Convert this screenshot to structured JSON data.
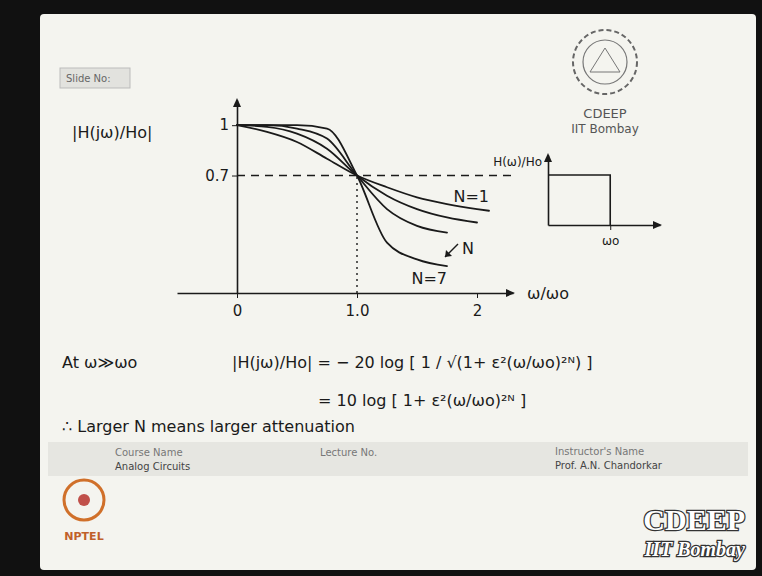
{
  "chart_data": [
    {
      "type": "line",
      "x_label": "ω/ωo",
      "y_label": "|H(jω)/Ho|",
      "x": [
        0,
        0.25,
        0.5,
        0.75,
        1.0,
        1.25,
        1.5,
        1.75,
        2.0,
        2.1
      ],
      "series": [
        {
          "name": "N=1",
          "values": [
            1.0,
            0.96,
            0.9,
            0.8,
            0.7,
            0.63,
            0.57,
            0.53,
            0.5,
            0.49
          ]
        },
        {
          "values": [
            1.0,
            0.99,
            0.95,
            0.86,
            0.7,
            0.58,
            0.5,
            0.45,
            0.42,
            null
          ]
        },
        {
          "values": [
            1.0,
            1.0,
            0.98,
            0.92,
            0.7,
            0.5,
            0.4,
            0.36,
            null,
            null
          ]
        },
        {
          "name": "N=7",
          "values": [
            1.0,
            1.0,
            1.0,
            0.98,
            0.7,
            0.3,
            0.2,
            0.16,
            null,
            null
          ]
        }
      ],
      "annotations": [
        {
          "text": "N"
        }
      ],
      "reference_lines": [
        {
          "axis": "y",
          "value": 0.7,
          "line_style": "dashed"
        },
        {
          "axis": "x",
          "value": 1.0,
          "line_style": "dotted"
        }
      ],
      "xlim": [
        -0.5,
        2.3
      ],
      "xticks": [
        0,
        {
          "value": 1,
          "label": "1.0"
        },
        2
      ],
      "ylim": [
        0,
        1.15
      ],
      "yticks": [
        0.7,
        1
      ],
      "grid": false,
      "color": "#1a1a1a"
    },
    {
      "type": "line",
      "y_label": "H(ω)/Ho",
      "x": [
        0,
        1,
        1
      ],
      "values": [
        1,
        1,
        0
      ],
      "xlim": [
        0,
        1.8
      ],
      "xticks": [
        {
          "value": 1,
          "label": "ωo"
        }
      ],
      "ylim": [
        0,
        1.4
      ],
      "yticks": [],
      "tick_labels": "x",
      "grid": false,
      "color": "#1a1a1a"
    }
  ],
  "slide": {
    "slide_no": "Slide No:",
    "logo": {
      "text": "CDEEP",
      "subtext": "IIT Bombay"
    },
    "equations": {
      "condition": "At ω≫ωo",
      "line1": "|H(jω)/Ho| = − 20 log [ 1 / √(1+ ε²(ω/ωo)²ᴺ) ]",
      "line2": "= 10 log [ 1+ ε²(ω/ωo)²ᴺ ]",
      "conclusion": "∴ Larger N means larger attenuation"
    },
    "footer": {
      "course_label": "Course Name",
      "course": "Analog Circuits",
      "lecture_label": "Lecture No.",
      "instructor_label": "Instructor's Name",
      "instructor": "Prof. A.N. Chandorkar"
    },
    "nptel": "NPTEL",
    "watermark": {
      "text": "CDEEP",
      "subtext": "IIT Bombay"
    }
  }
}
